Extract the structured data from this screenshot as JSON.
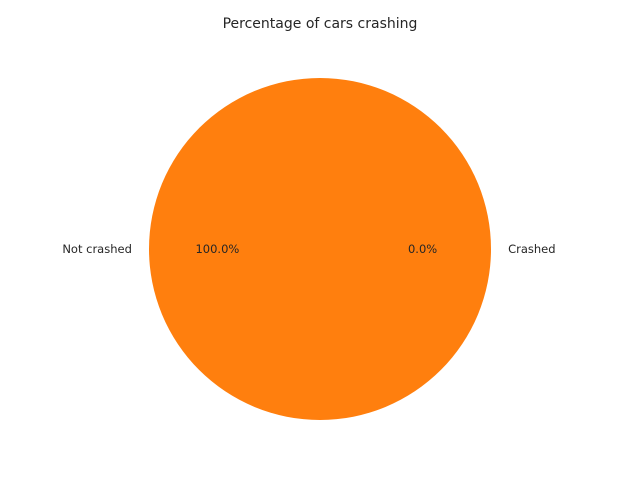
{
  "chart_data": {
    "type": "pie",
    "title": "Percentage of cars crashing",
    "slices": [
      {
        "label": "Crashed",
        "value": 0.0,
        "pct_label": "0.0%",
        "color": "#1f77b4"
      },
      {
        "label": "Not crashed",
        "value": 100.0,
        "pct_label": "100.0%",
        "color": "#ff7f0e"
      }
    ],
    "legend": "none"
  }
}
